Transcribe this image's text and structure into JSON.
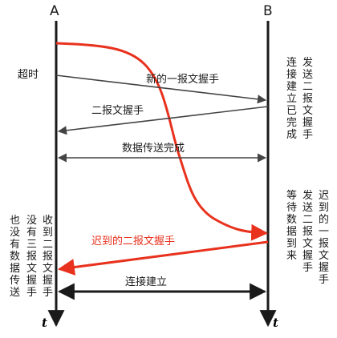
{
  "hosts": {
    "a": "A",
    "b": "B"
  },
  "time_symbol": "t",
  "left_notes": {
    "timeout": "超时",
    "col1": "收到二报文握手",
    "col2": "没有三报文握手",
    "col3": "也没有数据传送"
  },
  "right_notes": {
    "upper_col1": "发送二报文握手",
    "upper_col2": "连接建立已完成",
    "lower_col1": "迟到的一报文握手",
    "lower_col2": "发送二报文握手",
    "lower_col3": "等待数据到来"
  },
  "messages": {
    "new_first": "新的一报文握手",
    "second": "二报文握手",
    "data": "数据传送完成",
    "late_second": "迟到的二报文握手",
    "established": "连接建立"
  },
  "colors": {
    "red": "#e8321e",
    "black": "#1a1a1a",
    "gray": "#444444"
  }
}
